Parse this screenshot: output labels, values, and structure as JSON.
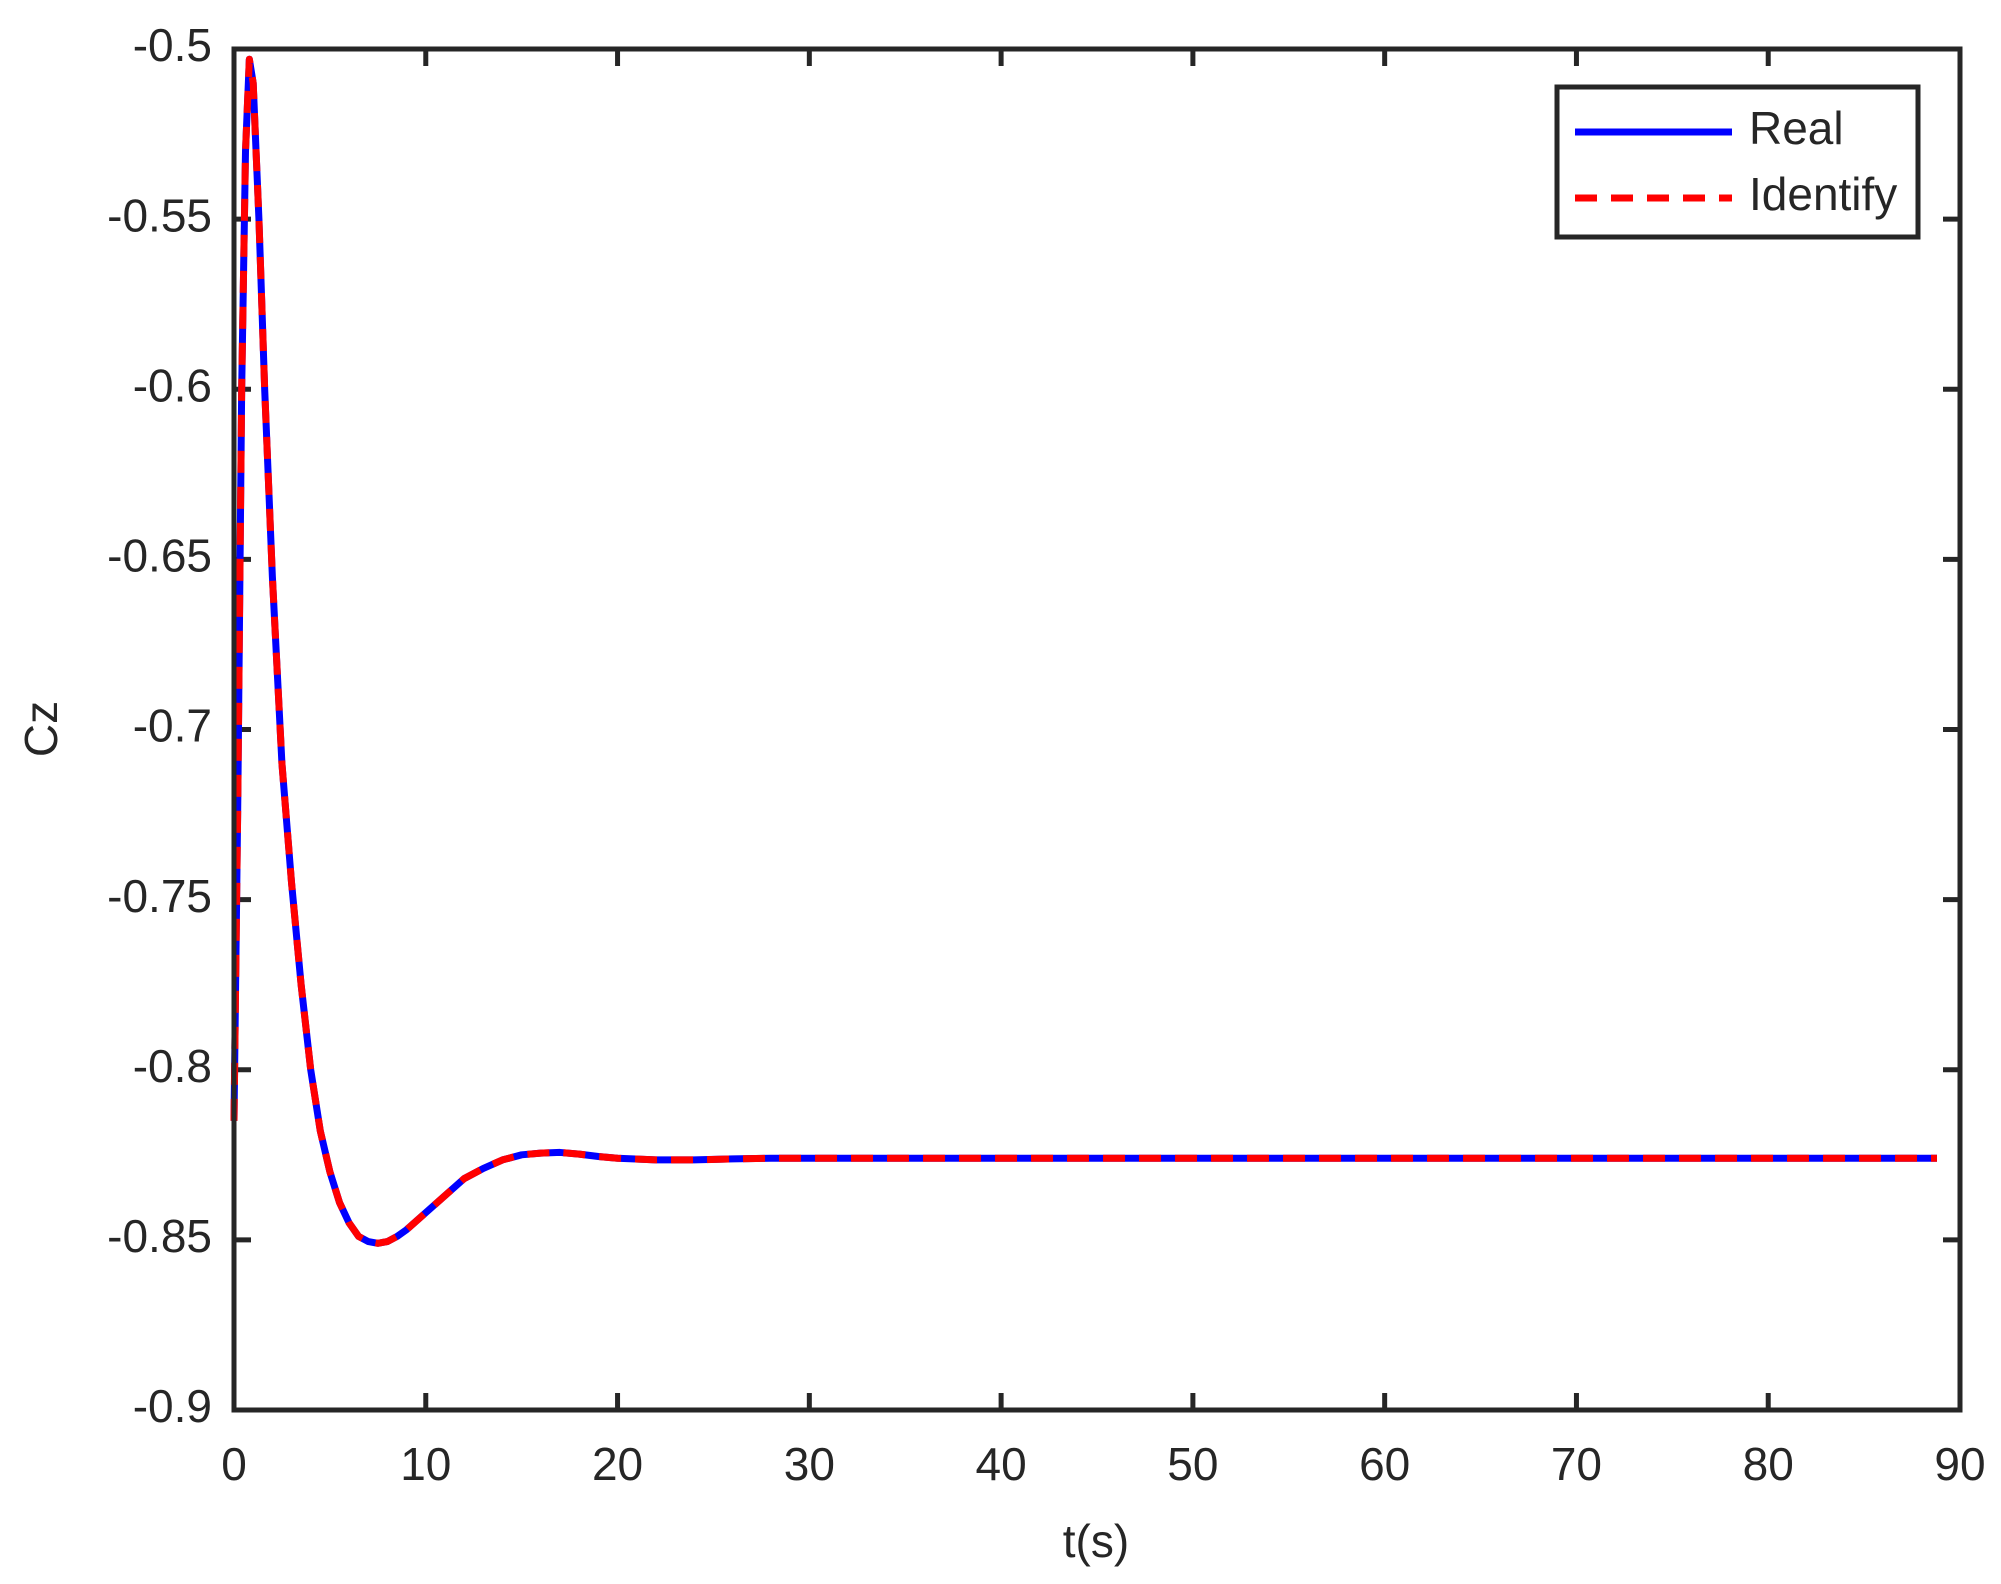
{
  "chart_data": {
    "type": "line",
    "xlabel": "t(s)",
    "ylabel": "Cz",
    "x": [
      0,
      0.2,
      0.4,
      0.6,
      0.8,
      1.0,
      1.3,
      1.6,
      2,
      2.5,
      3,
      3.5,
      4,
      4.5,
      5,
      5.5,
      6,
      6.5,
      7,
      7.5,
      8,
      8.5,
      9,
      10,
      11,
      12,
      13,
      14,
      15,
      16,
      17,
      18,
      19,
      20,
      22,
      24,
      26,
      28,
      30,
      35,
      40,
      50,
      60,
      70,
      80,
      88.8
    ],
    "series": [
      {
        "name": "Real",
        "color": "#0000ff",
        "dashed": false,
        "values": [
          -0.815,
          -0.72,
          -0.6,
          -0.53,
          -0.503,
          -0.51,
          -0.55,
          -0.6,
          -0.655,
          -0.71,
          -0.745,
          -0.775,
          -0.8,
          -0.818,
          -0.83,
          -0.839,
          -0.845,
          -0.849,
          -0.8505,
          -0.851,
          -0.8505,
          -0.849,
          -0.847,
          -0.842,
          -0.837,
          -0.832,
          -0.829,
          -0.8265,
          -0.825,
          -0.8245,
          -0.8243,
          -0.8248,
          -0.8255,
          -0.826,
          -0.8265,
          -0.8265,
          -0.8262,
          -0.826,
          -0.826,
          -0.826,
          -0.826,
          -0.826,
          -0.826,
          -0.826,
          -0.826,
          -0.826
        ]
      },
      {
        "name": "Identify",
        "color": "#ff0000",
        "dashed": true,
        "values": [
          -0.815,
          -0.72,
          -0.6,
          -0.53,
          -0.503,
          -0.51,
          -0.55,
          -0.6,
          -0.655,
          -0.71,
          -0.745,
          -0.775,
          -0.8,
          -0.818,
          -0.83,
          -0.839,
          -0.845,
          -0.849,
          -0.8505,
          -0.851,
          -0.8505,
          -0.849,
          -0.847,
          -0.842,
          -0.837,
          -0.832,
          -0.829,
          -0.8265,
          -0.825,
          -0.8245,
          -0.8243,
          -0.8248,
          -0.8255,
          -0.826,
          -0.8265,
          -0.8265,
          -0.8262,
          -0.826,
          -0.826,
          -0.826,
          -0.826,
          -0.826,
          -0.826,
          -0.826,
          -0.826,
          -0.826
        ]
      }
    ],
    "xlim": [
      0,
      90
    ],
    "xticks": [
      0,
      10,
      20,
      30,
      40,
      50,
      60,
      70,
      80,
      90
    ],
    "ylim": [
      -0.9,
      -0.5
    ],
    "yticks": [
      -0.9,
      -0.85,
      -0.8,
      -0.75,
      -0.7,
      -0.65,
      -0.6,
      -0.55,
      -0.5
    ],
    "grid": false,
    "legend": "upper right"
  }
}
